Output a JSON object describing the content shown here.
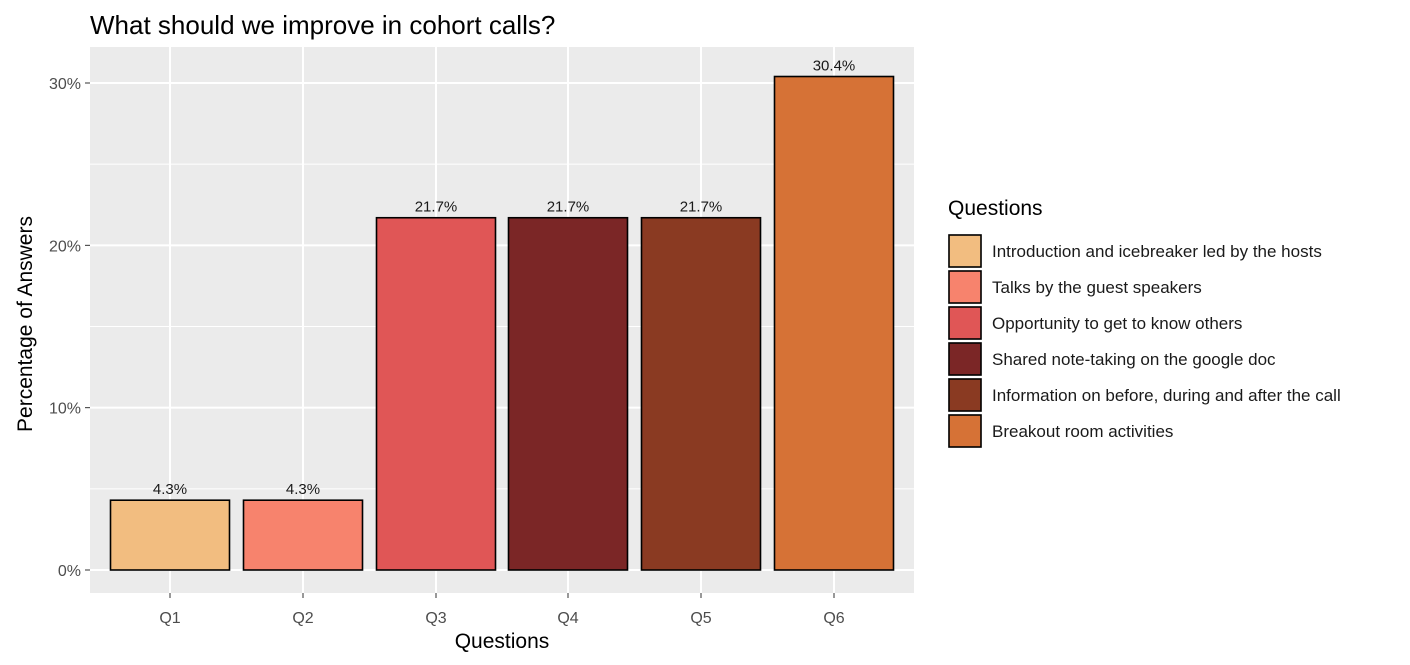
{
  "chart_data": {
    "type": "bar",
    "title": "What should we improve in cohort calls?",
    "xlabel": "Questions",
    "ylabel": "Percentage of Answers",
    "categories": [
      "Q1",
      "Q2",
      "Q3",
      "Q4",
      "Q5",
      "Q6"
    ],
    "values": [
      4.3,
      4.3,
      21.7,
      21.7,
      21.7,
      30.4
    ],
    "data_labels": [
      "4.3%",
      "4.3%",
      "21.7%",
      "21.7%",
      "21.7%",
      "30.4%"
    ],
    "ylim": [
      0,
      32
    ],
    "yticks": [
      0,
      10,
      20,
      30
    ],
    "ytick_labels": [
      "0%",
      "10%",
      "20%",
      "30%"
    ],
    "grid": true,
    "legend": {
      "title": "Questions",
      "placement": "right",
      "entries": [
        "Introduction and icebreaker led by the hosts",
        "Talks by the guest speakers",
        "Opportunity to get to know others",
        "Shared note-taking on the google doc",
        "Information on before, during and after the call",
        "Breakout room activities"
      ]
    },
    "colors": [
      "#F2BD80",
      "#F7836D",
      "#E05656",
      "#7B2626",
      "#8A3A22",
      "#D67236"
    ],
    "panel_background": "#EBEBEB",
    "grid_color": "#FFFFFF"
  }
}
